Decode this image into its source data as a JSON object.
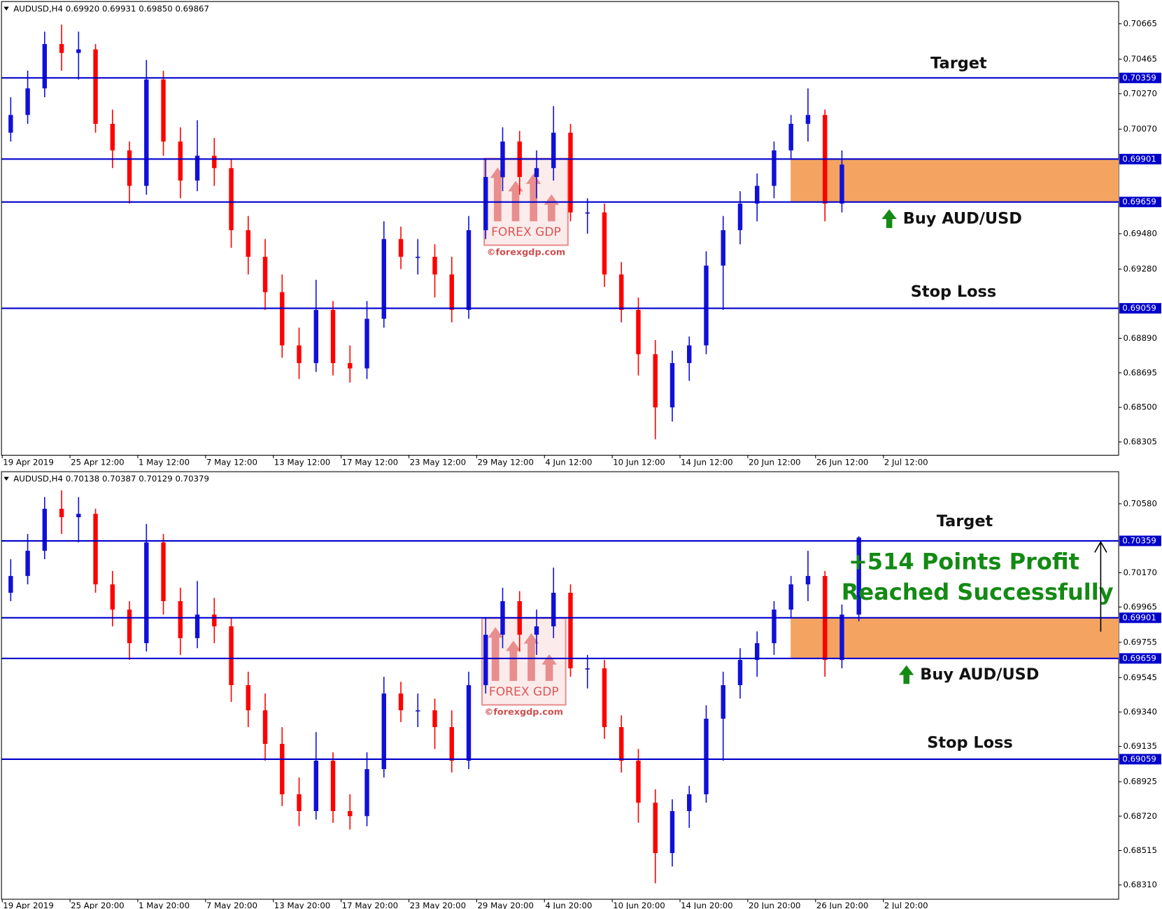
{
  "chart_data": [
    {
      "type": "candlestick",
      "header": "AUDUSD,H4  0.69920 0.69931 0.69850 0.69867",
      "categories": [
        "19 Apr 2019",
        "25 Apr 12:00",
        "1 May 12:00",
        "7 May 12:00",
        "13 May 12:00",
        "17 May 12:00",
        "23 May 12:00",
        "29 May 12:00",
        "4 Jun 12:00",
        "10 Jun 12:00",
        "14 Jun 12:00",
        "20 Jun 12:00",
        "26 Jun 12:00",
        "2 Jul 12:00"
      ],
      "ylim": [
        0.6823,
        0.7079
      ],
      "yticks": [
        {
          "value": 0.70665,
          "label": "0.70665"
        },
        {
          "value": 0.70465,
          "label": "0.70465"
        },
        {
          "value": 0.7027,
          "label": "0.70270"
        },
        {
          "value": 0.7007,
          "label": "0.70070"
        },
        {
          "value": 0.6948,
          "label": "0.69480"
        },
        {
          "value": 0.6928,
          "label": "0.69280"
        },
        {
          "value": 0.6889,
          "label": "0.68890"
        },
        {
          "value": 0.68695,
          "label": "0.68695"
        },
        {
          "value": 0.685,
          "label": "0.68500"
        },
        {
          "value": 0.68305,
          "label": "0.68305"
        }
      ],
      "levels": [
        0.70359,
        0.69901,
        0.69659,
        0.69059
      ],
      "bull_color": "#1010d8",
      "bear_color": "#ff0000",
      "level_color": "#0000cc",
      "zone_color": "#f4a460",
      "target_label": "Target",
      "buy_label": "Buy AUD/USD",
      "stop_label": "Stop Loss",
      "watermark": "FOREX GDP",
      "watermark_site": "©forexgdp.com",
      "open": [
        0.7005,
        0.7015,
        0.703,
        0.7055,
        0.705,
        0.7052,
        0.701,
        0.6995,
        0.6975,
        0.7035,
        0.7,
        0.6978,
        0.6992,
        0.6985,
        0.695,
        0.6935,
        0.6915,
        0.6885,
        0.6875,
        0.6905,
        0.6875,
        0.6872,
        0.69,
        0.6945,
        0.6935,
        0.6935,
        0.6925,
        0.6905,
        0.695,
        0.698,
        0.7,
        0.698,
        0.6985,
        0.7005,
        0.696,
        0.696,
        0.6925,
        0.6905,
        0.688,
        0.685,
        0.6875,
        0.6885,
        0.693,
        0.695,
        0.6965,
        0.6975,
        0.6995,
        0.701,
        0.7015,
        0.6965
      ],
      "high": [
        0.7025,
        0.704,
        0.7062,
        0.7066,
        0.7062,
        0.7055,
        0.7018,
        0.7,
        0.7046,
        0.704,
        0.7008,
        0.7012,
        0.7002,
        0.699,
        0.6958,
        0.6945,
        0.6925,
        0.6895,
        0.6922,
        0.691,
        0.6885,
        0.691,
        0.6955,
        0.6952,
        0.6945,
        0.6942,
        0.6935,
        0.6958,
        0.699,
        0.7008,
        0.7006,
        0.6995,
        0.702,
        0.701,
        0.6968,
        0.6965,
        0.6932,
        0.6912,
        0.6888,
        0.6882,
        0.689,
        0.6938,
        0.6958,
        0.6972,
        0.6982,
        0.7,
        0.7015,
        0.703,
        0.7018,
        0.6995
      ],
      "low": [
        0.7,
        0.701,
        0.7025,
        0.704,
        0.7035,
        0.7005,
        0.6985,
        0.6965,
        0.697,
        0.6992,
        0.6968,
        0.6972,
        0.6975,
        0.694,
        0.6925,
        0.6905,
        0.6878,
        0.6866,
        0.687,
        0.6868,
        0.6864,
        0.6866,
        0.6895,
        0.6928,
        0.6925,
        0.6912,
        0.6898,
        0.69,
        0.6945,
        0.6972,
        0.697,
        0.6968,
        0.6978,
        0.6955,
        0.6948,
        0.6918,
        0.6898,
        0.6868,
        0.6832,
        0.6842,
        0.6865,
        0.688,
        0.6905,
        0.6942,
        0.6955,
        0.6968,
        0.699,
        0.7,
        0.6955,
        0.696
      ],
      "close": [
        0.7015,
        0.703,
        0.7055,
        0.705,
        0.7052,
        0.701,
        0.6995,
        0.6975,
        0.7035,
        0.7,
        0.6978,
        0.6992,
        0.6985,
        0.695,
        0.6935,
        0.6915,
        0.6885,
        0.6875,
        0.6905,
        0.6875,
        0.6872,
        0.69,
        0.6945,
        0.6935,
        0.6935,
        0.6925,
        0.6905,
        0.695,
        0.698,
        0.7,
        0.698,
        0.6985,
        0.7005,
        0.696,
        0.696,
        0.6925,
        0.6905,
        0.688,
        0.685,
        0.6875,
        0.6885,
        0.693,
        0.695,
        0.6965,
        0.6975,
        0.6995,
        0.701,
        0.7015,
        0.6965,
        0.6987
      ]
    },
    {
      "type": "candlestick",
      "header": "AUDUSD,H4  0.70138 0.70387 0.70129 0.70379",
      "categories": [
        "19 Apr 2019",
        "25 Apr 20:00",
        "1 May 20:00",
        "7 May 20:00",
        "13 May 20:00",
        "17 May 20:00",
        "23 May 20:00",
        "29 May 20:00",
        "4 Jun 20:00",
        "10 Jun 20:00",
        "14 Jun 20:00",
        "20 Jun 20:00",
        "26 Jun 20:00",
        "2 Jul 20:00"
      ],
      "ylim": [
        0.68225,
        0.70771
      ],
      "yticks": [
        {
          "value": 0.7058,
          "label": "0.70580"
        },
        {
          "value": 0.7017,
          "label": "0.70170"
        },
        {
          "value": 0.69965,
          "label": "0.69965"
        },
        {
          "value": 0.69755,
          "label": "0.69755"
        },
        {
          "value": 0.69545,
          "label": "0.69545"
        },
        {
          "value": 0.6934,
          "label": "0.69340"
        },
        {
          "value": 0.69135,
          "label": "0.69135"
        },
        {
          "value": 0.68925,
          "label": "0.68925"
        },
        {
          "value": 0.6872,
          "label": "0.68720"
        },
        {
          "value": 0.68515,
          "label": "0.68515"
        },
        {
          "value": 0.6831,
          "label": "0.68310"
        }
      ],
      "levels": [
        0.70359,
        0.69901,
        0.69659,
        0.69059
      ],
      "bull_color": "#1010d8",
      "bear_color": "#ff0000",
      "level_color": "#0000cc",
      "zone_color": "#f4a460",
      "target_label": "Target",
      "buy_label": "Buy AUD/USD",
      "stop_label": "Stop Loss",
      "profit_text": [
        "+514 Points Profit",
        "Reached Successfully"
      ],
      "profit_color": "#138a13",
      "watermark": "FOREX GDP",
      "watermark_site": "©forexgdp.com",
      "open": [
        0.7005,
        0.7015,
        0.703,
        0.7055,
        0.705,
        0.7052,
        0.701,
        0.6995,
        0.6975,
        0.7035,
        0.7,
        0.6978,
        0.6992,
        0.6985,
        0.695,
        0.6935,
        0.6915,
        0.6885,
        0.6875,
        0.6905,
        0.6875,
        0.6872,
        0.69,
        0.6945,
        0.6935,
        0.6935,
        0.6925,
        0.6905,
        0.695,
        0.698,
        0.7,
        0.698,
        0.6985,
        0.7005,
        0.696,
        0.696,
        0.6925,
        0.6905,
        0.688,
        0.685,
        0.6875,
        0.6885,
        0.693,
        0.695,
        0.6965,
        0.6975,
        0.6995,
        0.701,
        0.7015,
        0.6965,
        0.6992
      ],
      "high": [
        0.7025,
        0.704,
        0.7062,
        0.7066,
        0.7062,
        0.7055,
        0.7018,
        0.7,
        0.7046,
        0.704,
        0.7008,
        0.7012,
        0.7002,
        0.699,
        0.6958,
        0.6945,
        0.6925,
        0.6895,
        0.6922,
        0.691,
        0.6885,
        0.691,
        0.6955,
        0.6952,
        0.6945,
        0.6942,
        0.6935,
        0.6958,
        0.699,
        0.7008,
        0.7006,
        0.6995,
        0.702,
        0.701,
        0.6968,
        0.6965,
        0.6932,
        0.6912,
        0.6888,
        0.6882,
        0.689,
        0.6938,
        0.6958,
        0.6972,
        0.6982,
        0.7,
        0.7015,
        0.703,
        0.7018,
        0.6998,
        0.70387
      ],
      "low": [
        0.7,
        0.701,
        0.7025,
        0.704,
        0.7035,
        0.7005,
        0.6985,
        0.6965,
        0.697,
        0.6992,
        0.6968,
        0.6972,
        0.6975,
        0.694,
        0.6925,
        0.6905,
        0.6878,
        0.6866,
        0.687,
        0.6868,
        0.6864,
        0.6866,
        0.6895,
        0.6928,
        0.6925,
        0.6912,
        0.6898,
        0.69,
        0.6945,
        0.6972,
        0.697,
        0.6968,
        0.6978,
        0.6955,
        0.6948,
        0.6918,
        0.6898,
        0.6868,
        0.6832,
        0.6842,
        0.6865,
        0.688,
        0.6905,
        0.6942,
        0.6955,
        0.6968,
        0.699,
        0.7,
        0.6955,
        0.696,
        0.6988
      ],
      "close": [
        0.7015,
        0.703,
        0.7055,
        0.705,
        0.7052,
        0.701,
        0.6995,
        0.6975,
        0.7035,
        0.7,
        0.6978,
        0.6992,
        0.6985,
        0.695,
        0.6935,
        0.6915,
        0.6885,
        0.6875,
        0.6905,
        0.6875,
        0.6872,
        0.69,
        0.6945,
        0.6935,
        0.6935,
        0.6925,
        0.6905,
        0.695,
        0.698,
        0.7,
        0.698,
        0.6985,
        0.7005,
        0.696,
        0.696,
        0.6925,
        0.6905,
        0.688,
        0.685,
        0.6875,
        0.6885,
        0.693,
        0.695,
        0.6965,
        0.6975,
        0.6995,
        0.701,
        0.7015,
        0.6965,
        0.6992,
        0.70379
      ]
    }
  ]
}
